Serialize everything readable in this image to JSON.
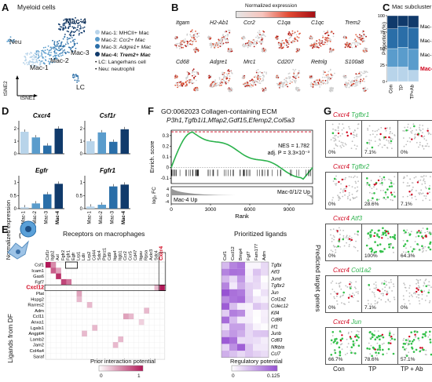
{
  "panels": {
    "A": "A",
    "B": "B",
    "C": "C",
    "D": "D",
    "E": "E",
    "F": "F",
    "G": "G"
  },
  "panelA": {
    "title": "Myeloid cells",
    "clusters": {
      "neu": "Neu",
      "mac1": "Mac-1",
      "mac2": "Mac-2",
      "mac3": "Mac-3",
      "mac4": "Mac-4",
      "lc": "LC"
    },
    "axis_y": "tSNE2",
    "axis_x": "tSNE1",
    "legend": [
      {
        "key": "Mac-1:",
        "desc": "MHCII+ Mac",
        "italic": false
      },
      {
        "key": "Mac-2:",
        "desc": "Ccr2+ Mac",
        "italic": true
      },
      {
        "key": "Mac-3:",
        "desc": "Adgre1+ Mac",
        "italic": true
      },
      {
        "key": "Mac-4:",
        "desc": "Trem2+ Mac",
        "italic": true,
        "bold": true
      },
      {
        "key": "• LC:",
        "desc": "Langerhans cell",
        "italic": false
      },
      {
        "key": "• Neu:",
        "desc": "neutrophil",
        "italic": false
      }
    ]
  },
  "panelB": {
    "scale_label": "Normalized expression",
    "genes": [
      "Itgam",
      "H2-Ab1",
      "Ccr2",
      "C1qa",
      "C1qc",
      "Trem2",
      "Cd68",
      "Adgre1",
      "Mrc1",
      "Cd207",
      "Retnlg",
      "S100a8"
    ]
  },
  "panelC": {
    "title": "Mac subcluster",
    "ylabel": "Proportion (%)",
    "yticks": [
      "0",
      "25",
      "50",
      "75",
      "100"
    ],
    "groups": [
      "Con",
      "TP",
      "TP+Ab"
    ],
    "legend": [
      "Mac-1",
      "Mac-2",
      "Mac-3",
      "Mac-4"
    ]
  },
  "chart_data": [
    {
      "type": "bar",
      "title": "Cxcr4",
      "categories": [
        "Mac-1",
        "Mac-2",
        "Mac-3",
        "Mac-4"
      ],
      "values": [
        1.75,
        1.3,
        0.65,
        2.0
      ],
      "ylabel": "Normalized expression",
      "yticks": [
        "0",
        "1",
        "2"
      ],
      "ylim": [
        0,
        2.5
      ]
    },
    {
      "type": "bar",
      "title": "Csf1r",
      "categories": [
        "Mac-1",
        "Mac-2",
        "Mac-3",
        "Mac-4"
      ],
      "values": [
        1.0,
        1.7,
        0.95,
        1.95
      ],
      "yticks": [
        "0",
        "1",
        "2"
      ],
      "ylim": [
        0,
        2.5
      ]
    },
    {
      "type": "bar",
      "title": "Egfr",
      "categories": [
        "Mac-1",
        "Mac-2",
        "Mac-3",
        "Mac-4"
      ],
      "values": [
        0.05,
        0.2,
        0.55,
        0.95
      ],
      "yticks": [
        "0",
        "0.5",
        "1"
      ],
      "ylim": [
        0,
        1.2
      ]
    },
    {
      "type": "bar",
      "title": "Fgfr1",
      "categories": [
        "Mac-1",
        "Mac-2",
        "Mac-3",
        "Mac-4"
      ],
      "values": [
        0.08,
        0.15,
        0.85,
        0.92
      ],
      "yticks": [
        "0",
        "0.5",
        "1"
      ],
      "ylim": [
        0,
        1.2
      ]
    },
    {
      "type": "bar",
      "title": "Mac subcluster",
      "categories": [
        "Con",
        "TP",
        "TP+Ab"
      ],
      "series": [
        {
          "name": "Mac-1",
          "values": [
            22,
            22,
            17
          ]
        },
        {
          "name": "Mac-2",
          "values": [
            28,
            30,
            32
          ]
        },
        {
          "name": "Mac-3",
          "values": [
            30,
            32,
            33
          ]
        },
        {
          "name": "Mac-4",
          "values": [
            20,
            16,
            18
          ]
        }
      ],
      "ylim": [
        0,
        100
      ]
    }
  ],
  "panelF": {
    "title": "GO:0062023 Collagen-containing ECM",
    "genes": "P3h1,Tgfb1i1,Mfap2,Gdf15,Efemp2,Col5a3",
    "nes": "NES = 1.782",
    "padj": "adj. P = 3.3×10⁻³",
    "ylabel_top": "Enrich. score",
    "ylabel_bot": "log₂ FC",
    "yticks": [
      "0.3",
      "0.2",
      "0.1",
      "0",
      "-0.1"
    ],
    "ytick_bot": [
      "4",
      "0",
      "-4"
    ],
    "xlabel": "Rank",
    "xticks": [
      "0",
      "3000",
      "6000",
      "9000"
    ],
    "mac4up": "Mac-4 Up",
    "mac012up": "Mac-0/1/2 Up"
  },
  "panelE": {
    "title_left": "Receptors on macrophages",
    "title_right": "Prioritized ligands",
    "ylabel": "Ligands from DF",
    "ylabel_right": "Predicted target genes",
    "ligands": [
      "Csf1",
      "Icam1",
      "Gas6",
      "Fgf7",
      "Cxcl12",
      "Plat",
      "Hspg2",
      "Rarres2",
      "Adm",
      "Ccl11",
      "Anxa1",
      "Lgals1",
      "Angptl4",
      "Lamb2",
      "Jam2",
      "Col4a4",
      "Saraf"
    ],
    "receptors": [
      "Csf1r",
      "Itgb2",
      "Axl",
      "Fgfr2",
      "Fgfr1",
      "Egfr",
      "Lrp1",
      "Ldlr",
      "Lrp2",
      "Cd44",
      "Sdc4",
      "Ptprz1",
      "Cd9",
      "Itga4",
      "Itgb1",
      "Ccr2",
      "Ccr5",
      "Cd47",
      "Itgav",
      "Rpsa",
      "Ackr3",
      "Sdc4",
      "Cxcr4"
    ],
    "pl_ligands": [
      "Csf1",
      "Cxcl12",
      "Bmp4",
      "Fgf7",
      "Fam177",
      "Adm"
    ],
    "targets": [
      "Tgfbi",
      "Atf3",
      "Jund",
      "Tgfbr2",
      "Jun",
      "Col1a2",
      "Colec12",
      "Klf4",
      "Cd86",
      "Irf1",
      "Junb",
      "Cd83",
      "Nfkbia",
      "Ccl7"
    ],
    "cbar1_label": "Prior interaction potential",
    "cbar1_ticks": [
      "0",
      "1"
    ],
    "cbar2_label": "Regulatory potential",
    "cbar2_ticks": [
      "0",
      "0.125"
    ]
  },
  "panelG": {
    "rows": [
      {
        "a": "Cxcr4",
        "b": "Tgfbr1",
        "pcts": [
          "0%",
          "7.1%",
          "0%"
        ]
      },
      {
        "a": "Cxcr4",
        "b": "Tgfbr2",
        "pcts": [
          "0%",
          "28.6%",
          "7.1%"
        ]
      },
      {
        "a": "Cxcr4",
        "b": "Atf3",
        "pcts": [
          "0%",
          "100%",
          "64.3%"
        ]
      },
      {
        "a": "Cxcr4",
        "b": "Col1a2",
        "pcts": [
          "0%",
          "7.1%",
          "0%"
        ]
      },
      {
        "a": "Cxcr4",
        "b": "Jun",
        "pcts": [
          "66.7%",
          "78.6%",
          "57.1%"
        ]
      }
    ],
    "cols": [
      "Con",
      "TP",
      "TP + Ab"
    ]
  },
  "colors": {
    "mac1": "#b8d4ea",
    "mac2": "#5a9ccc",
    "mac3": "#2a6ea8",
    "mac4": "#103a6b",
    "red": "#d0021b",
    "green": "#2bb24c",
    "purple": "#9b59d6"
  }
}
